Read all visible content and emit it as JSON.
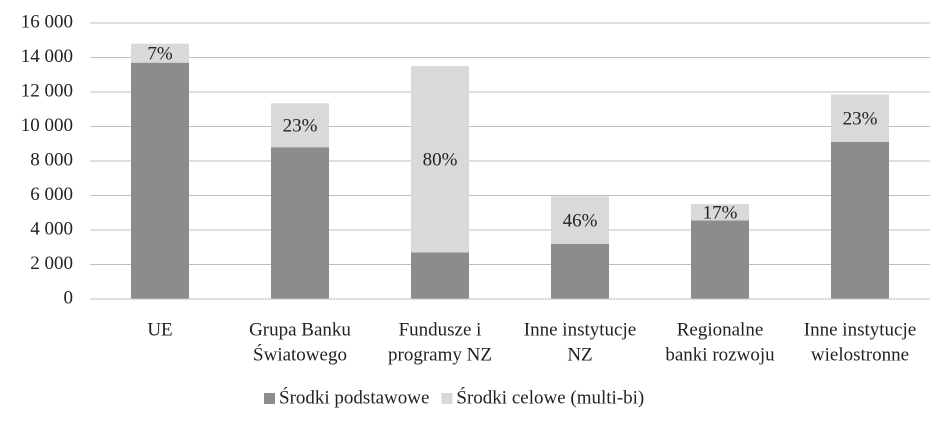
{
  "chart_data": {
    "type": "stacked_bar",
    "categories": [
      [
        "UE"
      ],
      [
        "Grupa Banku",
        "Światowego"
      ],
      [
        "Fundusze i",
        "programy NZ"
      ],
      [
        "Inne instytucje",
        "NZ"
      ],
      [
        "Regionalne",
        "banki rozwoju"
      ],
      [
        "Inne instytucje",
        "wielostronne"
      ]
    ],
    "series": [
      {
        "name": "Środki podstawowe",
        "color": "#8c8c8c",
        "values": [
          13700,
          8800,
          2700,
          3200,
          4550,
          9100
        ]
      },
      {
        "name": "Środki celowe (multi-bi)",
        "color": "#d9d9d9",
        "values": [
          1100,
          2550,
          10800,
          2750,
          950,
          2750
        ]
      }
    ],
    "segment_labels": [
      "7%",
      "23%",
      "80%",
      "46%",
      "17%",
      "23%"
    ],
    "ylim": [
      0,
      16000
    ],
    "yticks": [
      0,
      {
        "value": 2000,
        "label": "2 000"
      },
      {
        "value": 4000,
        "label": "4 000"
      },
      {
        "value": 6000,
        "label": "6 000"
      },
      {
        "value": 8000,
        "label": "8 000"
      },
      {
        "value": 10000,
        "label": "10 000"
      },
      {
        "value": 12000,
        "label": "12 000"
      },
      {
        "value": 14000,
        "label": "14 000"
      },
      {
        "value": 16000,
        "label": "16 000"
      }
    ],
    "grid": true,
    "legend": "bottom"
  }
}
